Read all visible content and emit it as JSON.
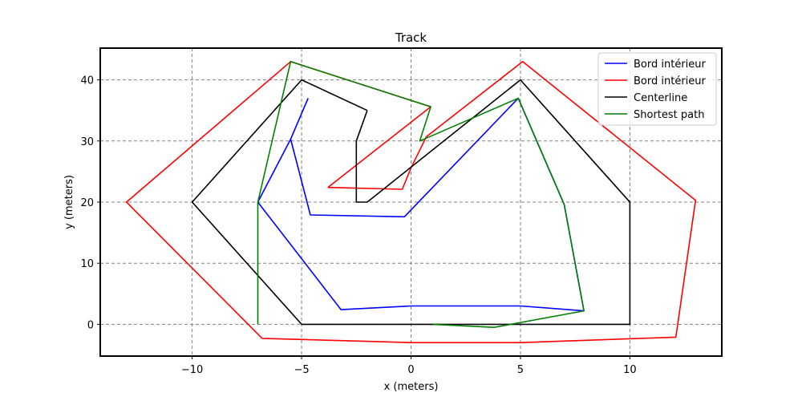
{
  "chart_data": {
    "type": "line",
    "title": "Track",
    "xlabel": "x (meters)",
    "ylabel": "y (meters)",
    "xlim": [
      -14.2,
      14.2
    ],
    "ylim": [
      -5.2,
      45.2
    ],
    "xticks": [
      -10,
      -5,
      0,
      5,
      10
    ],
    "yticks": [
      0,
      10,
      20,
      30,
      40
    ],
    "grid": true,
    "legend_position": "top-right",
    "series": [
      {
        "name": "Bord intérieur",
        "color": "#0000ff",
        "points": [
          [
            -4.7,
            37.0
          ],
          [
            -5.5,
            30.3
          ],
          [
            -7.0,
            20.0
          ],
          [
            -3.2,
            2.4
          ],
          [
            0.0,
            3.0
          ],
          [
            5.0,
            3.0
          ],
          [
            7.9,
            2.2
          ],
          [
            7.0,
            19.6
          ],
          [
            4.9,
            37.0
          ],
          [
            -0.3,
            17.6
          ],
          [
            -4.6,
            17.9
          ],
          [
            -5.5,
            30.3
          ],
          [
            -4.7,
            37.0
          ]
        ]
      },
      {
        "name": "Bord intérieur",
        "color": "#ff0000",
        "points": [
          [
            -3.8,
            22.4
          ],
          [
            -0.4,
            22.1
          ],
          [
            0.0,
            25.6
          ],
          [
            0.7,
            30.7
          ],
          [
            5.1,
            43.0
          ],
          [
            13.0,
            20.3
          ],
          [
            12.1,
            -2.1
          ],
          [
            5.0,
            -3.0
          ],
          [
            0.0,
            -3.0
          ],
          [
            -6.8,
            -2.3
          ],
          [
            -13.0,
            20.0
          ],
          [
            -5.5,
            43.0
          ],
          [
            0.9,
            35.6
          ],
          [
            -3.8,
            22.4
          ]
        ]
      },
      {
        "name": "Centerline",
        "color": "#000000",
        "points": [
          [
            -2.0,
            35.0
          ],
          [
            -5.0,
            40.0
          ],
          [
            -10.0,
            20.0
          ],
          [
            -5.0,
            0.0
          ],
          [
            10.0,
            0.0
          ],
          [
            10.0,
            20.0
          ],
          [
            5.0,
            40.0
          ],
          [
            -2.0,
            20.0
          ],
          [
            -2.5,
            20.0
          ],
          [
            -2.5,
            30.0
          ],
          [
            -2.0,
            35.0
          ]
        ]
      },
      {
        "name": "Shortest path",
        "color": "#008000",
        "points": [
          [
            -7.0,
            0.0
          ],
          [
            -7.0,
            20.0
          ],
          [
            -5.5,
            43.0
          ],
          [
            0.9,
            35.6
          ],
          [
            0.4,
            30.0
          ],
          [
            4.9,
            37.0
          ],
          [
            7.0,
            19.6
          ],
          [
            7.9,
            2.2
          ],
          [
            3.8,
            -0.5
          ],
          [
            1.0,
            0.0
          ]
        ]
      }
    ]
  }
}
